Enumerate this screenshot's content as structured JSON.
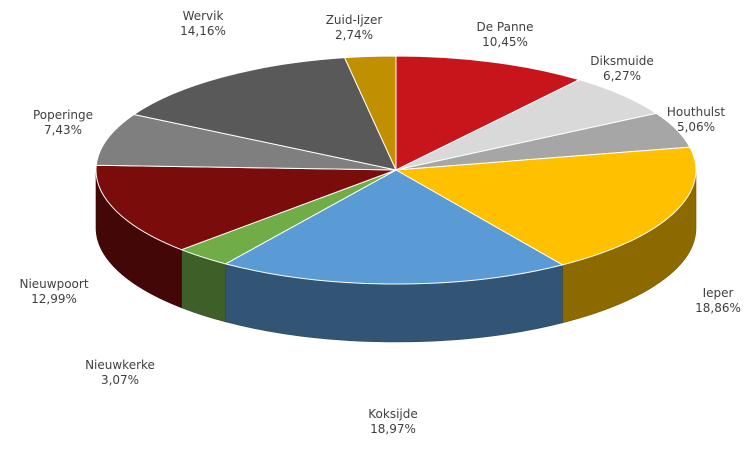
{
  "chart_data": {
    "type": "pie",
    "title": "",
    "style": "3d",
    "slices": [
      {
        "name": "De Panne",
        "value_label": "10,45%",
        "value": 10.45,
        "color": "#c8151b"
      },
      {
        "name": "Diksmuide",
        "value_label": "6,27%",
        "value": 6.27,
        "color": "#d9d9d9"
      },
      {
        "name": "Houthulst",
        "value_label": "5,06%",
        "value": 5.06,
        "color": "#a6a6a6"
      },
      {
        "name": "Ieper",
        "value_label": "18,86%",
        "value": 18.86,
        "color": "#ffc000"
      },
      {
        "name": "Koksijde",
        "value_label": "18,97%",
        "value": 18.97,
        "color": "#5b9bd5"
      },
      {
        "name": "Nieuwkerke",
        "value_label": "3,07%",
        "value": 3.07,
        "color": "#70ad47"
      },
      {
        "name": "Nieuwpoort",
        "value_label": "12,99%",
        "value": 12.99,
        "color": "#7b0c0c"
      },
      {
        "name": "Poperinge",
        "value_label": "7,43%",
        "value": 7.43,
        "color": "#7f7f7f"
      },
      {
        "name": "Wervik",
        "value_label": "14,16%",
        "value": 14.16,
        "color": "#595959"
      },
      {
        "name": "Zuid-Ijzer",
        "value_label": "2,74%",
        "value": 2.74,
        "color": "#c09000"
      }
    ]
  }
}
